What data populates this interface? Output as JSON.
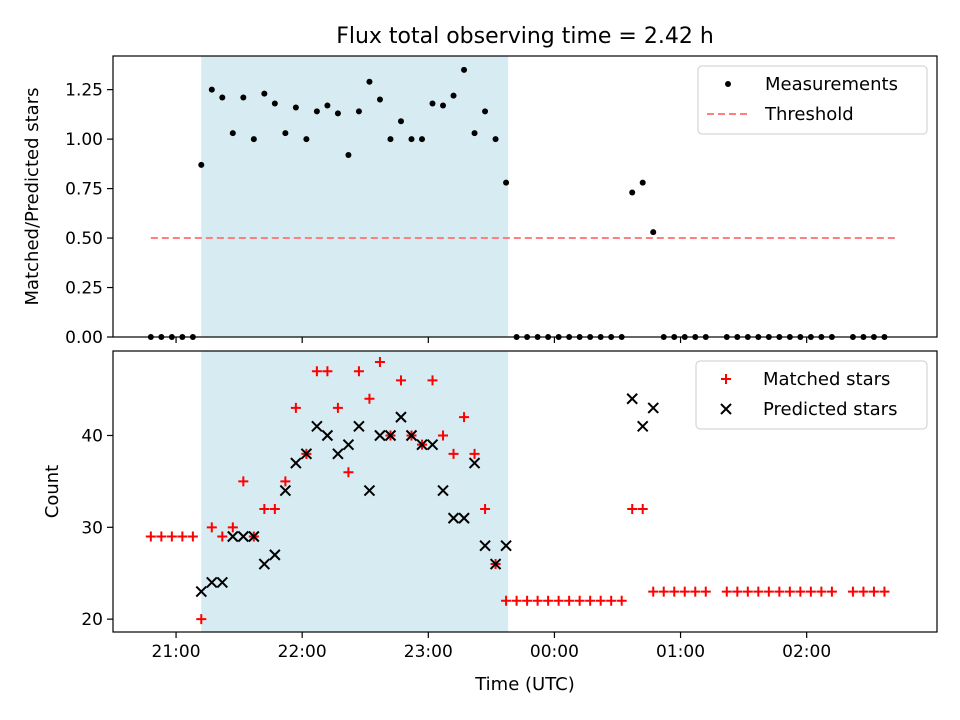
{
  "figure_title": "Flux total observing time = 2.42 h",
  "colors": {
    "span": "#add8e6",
    "measurement": "#000000",
    "threshold": "#ff7f7f",
    "matched": "#ff0000",
    "predicted": "#000000"
  },
  "chart_data": [
    {
      "type": "scatter",
      "title": "Flux total observing time = 2.42 h",
      "ylabel": "Matched/Predicted stars",
      "xlabel": "",
      "xlim": [
        "20:30",
        "03:02"
      ],
      "ylim": [
        0.0,
        1.42
      ],
      "yticks": [
        "0.00",
        "0.25",
        "0.50",
        "0.75",
        "1.00",
        "1.25"
      ],
      "xticks_shown": false,
      "legend_position": "top-right",
      "highlight_span": [
        "21:12",
        "23:38"
      ],
      "series": [
        {
          "name": "Measurements",
          "marker": "dot",
          "points": [
            [
              "20:48",
              0
            ],
            [
              "20:53",
              0
            ],
            [
              "20:58",
              0
            ],
            [
              "21:03",
              0
            ],
            [
              "21:08",
              0
            ],
            [
              "21:12",
              0.87
            ],
            [
              "21:17",
              1.25
            ],
            [
              "21:22",
              1.21
            ],
            [
              "21:27",
              1.03
            ],
            [
              "21:32",
              1.21
            ],
            [
              "21:37",
              1.0
            ],
            [
              "21:42",
              1.23
            ],
            [
              "21:47",
              1.18
            ],
            [
              "21:52",
              1.03
            ],
            [
              "21:57",
              1.16
            ],
            [
              "22:02",
              1.0
            ],
            [
              "22:07",
              1.14
            ],
            [
              "22:12",
              1.17
            ],
            [
              "22:17",
              1.13
            ],
            [
              "22:22",
              0.92
            ],
            [
              "22:27",
              1.14
            ],
            [
              "22:32",
              1.29
            ],
            [
              "22:37",
              1.2
            ],
            [
              "22:42",
              1.0
            ],
            [
              "22:47",
              1.09
            ],
            [
              "22:52",
              1.0
            ],
            [
              "22:57",
              1.0
            ],
            [
              "23:02",
              1.18
            ],
            [
              "23:07",
              1.17
            ],
            [
              "23:12",
              1.22
            ],
            [
              "23:17",
              1.35
            ],
            [
              "23:22",
              1.03
            ],
            [
              "23:27",
              1.14
            ],
            [
              "23:32",
              1.0
            ],
            [
              "23:37",
              0.78
            ],
            [
              "23:42",
              0
            ],
            [
              "23:47",
              0
            ],
            [
              "23:52",
              0
            ],
            [
              "23:57",
              0
            ],
            [
              "00:02",
              0
            ],
            [
              "00:07",
              0
            ],
            [
              "00:12",
              0
            ],
            [
              "00:17",
              0
            ],
            [
              "00:22",
              0
            ],
            [
              "00:27",
              0
            ],
            [
              "00:32",
              0
            ],
            [
              "00:37",
              0.73
            ],
            [
              "00:42",
              0.78
            ],
            [
              "00:47",
              0.53
            ],
            [
              "00:52",
              0
            ],
            [
              "00:57",
              0
            ],
            [
              "01:02",
              0
            ],
            [
              "01:07",
              0
            ],
            [
              "01:12",
              0
            ],
            [
              "01:22",
              0
            ],
            [
              "01:27",
              0
            ],
            [
              "01:32",
              0
            ],
            [
              "01:37",
              0
            ],
            [
              "01:42",
              0
            ],
            [
              "01:47",
              0
            ],
            [
              "01:52",
              0
            ],
            [
              "01:57",
              0
            ],
            [
              "02:02",
              0
            ],
            [
              "02:07",
              0
            ],
            [
              "02:12",
              0
            ],
            [
              "02:22",
              0
            ],
            [
              "02:27",
              0
            ],
            [
              "02:32",
              0
            ],
            [
              "02:37",
              0
            ]
          ]
        },
        {
          "name": "Threshold",
          "style": "dashed",
          "points": [
            [
              "20:48",
              0.5
            ],
            [
              "02:42",
              0.5
            ]
          ]
        }
      ]
    },
    {
      "type": "scatter",
      "title": "",
      "ylabel": "Count",
      "xlabel": "Time (UTC)",
      "xlim": [
        "20:30",
        "03:02"
      ],
      "ylim": [
        18.6,
        49.2
      ],
      "yticks": [
        "20",
        "30",
        "40"
      ],
      "xticks": [
        "21:00",
        "22:00",
        "23:00",
        "00:00",
        "01:00",
        "02:00"
      ],
      "legend_position": "top-right",
      "highlight_span": [
        "21:12",
        "23:38"
      ],
      "series": [
        {
          "name": "Matched stars",
          "marker": "plus",
          "points": [
            [
              "20:48",
              29
            ],
            [
              "20:53",
              29
            ],
            [
              "20:58",
              29
            ],
            [
              "21:03",
              29
            ],
            [
              "21:08",
              29
            ],
            [
              "21:12",
              20
            ],
            [
              "21:17",
              30
            ],
            [
              "21:22",
              29
            ],
            [
              "21:27",
              30
            ],
            [
              "21:32",
              35
            ],
            [
              "21:37",
              29
            ],
            [
              "21:42",
              32
            ],
            [
              "21:47",
              32
            ],
            [
              "21:52",
              35
            ],
            [
              "21:57",
              43
            ],
            [
              "22:02",
              38
            ],
            [
              "22:07",
              47
            ],
            [
              "22:12",
              47
            ],
            [
              "22:17",
              43
            ],
            [
              "22:22",
              36
            ],
            [
              "22:27",
              47
            ],
            [
              "22:32",
              44
            ],
            [
              "22:37",
              48
            ],
            [
              "22:42",
              40
            ],
            [
              "22:47",
              46
            ],
            [
              "22:52",
              40
            ],
            [
              "22:57",
              39
            ],
            [
              "23:02",
              46
            ],
            [
              "23:07",
              40
            ],
            [
              "23:12",
              38
            ],
            [
              "23:17",
              42
            ],
            [
              "23:22",
              38
            ],
            [
              "23:27",
              32
            ],
            [
              "23:32",
              26
            ],
            [
              "23:37",
              22
            ],
            [
              "23:42",
              22
            ],
            [
              "23:47",
              22
            ],
            [
              "23:52",
              22
            ],
            [
              "23:57",
              22
            ],
            [
              "00:02",
              22
            ],
            [
              "00:07",
              22
            ],
            [
              "00:12",
              22
            ],
            [
              "00:17",
              22
            ],
            [
              "00:22",
              22
            ],
            [
              "00:27",
              22
            ],
            [
              "00:32",
              22
            ],
            [
              "00:37",
              32
            ],
            [
              "00:42",
              32
            ],
            [
              "00:47",
              23
            ],
            [
              "00:52",
              23
            ],
            [
              "00:57",
              23
            ],
            [
              "01:02",
              23
            ],
            [
              "01:07",
              23
            ],
            [
              "01:12",
              23
            ],
            [
              "01:22",
              23
            ],
            [
              "01:27",
              23
            ],
            [
              "01:32",
              23
            ],
            [
              "01:37",
              23
            ],
            [
              "01:42",
              23
            ],
            [
              "01:47",
              23
            ],
            [
              "01:52",
              23
            ],
            [
              "01:57",
              23
            ],
            [
              "02:02",
              23
            ],
            [
              "02:07",
              23
            ],
            [
              "02:12",
              23
            ],
            [
              "02:22",
              23
            ],
            [
              "02:27",
              23
            ],
            [
              "02:32",
              23
            ],
            [
              "02:37",
              23
            ]
          ]
        },
        {
          "name": "Predicted stars",
          "marker": "x",
          "points": [
            [
              "21:12",
              23
            ],
            [
              "21:17",
              24
            ],
            [
              "21:22",
              24
            ],
            [
              "21:27",
              29
            ],
            [
              "21:32",
              29
            ],
            [
              "21:37",
              29
            ],
            [
              "21:42",
              26
            ],
            [
              "21:47",
              27
            ],
            [
              "21:52",
              34
            ],
            [
              "21:57",
              37
            ],
            [
              "22:02",
              38
            ],
            [
              "22:07",
              41
            ],
            [
              "22:12",
              40
            ],
            [
              "22:17",
              38
            ],
            [
              "22:22",
              39
            ],
            [
              "22:27",
              41
            ],
            [
              "22:32",
              34
            ],
            [
              "22:37",
              40
            ],
            [
              "22:42",
              40
            ],
            [
              "22:47",
              42
            ],
            [
              "22:52",
              40
            ],
            [
              "22:57",
              39
            ],
            [
              "23:02",
              39
            ],
            [
              "23:07",
              34
            ],
            [
              "23:12",
              31
            ],
            [
              "23:17",
              31
            ],
            [
              "23:22",
              37
            ],
            [
              "23:27",
              28
            ],
            [
              "23:32",
              26
            ],
            [
              "23:37",
              28
            ],
            [
              "00:37",
              44
            ],
            [
              "00:42",
              41
            ],
            [
              "00:47",
              43
            ]
          ]
        }
      ]
    }
  ]
}
